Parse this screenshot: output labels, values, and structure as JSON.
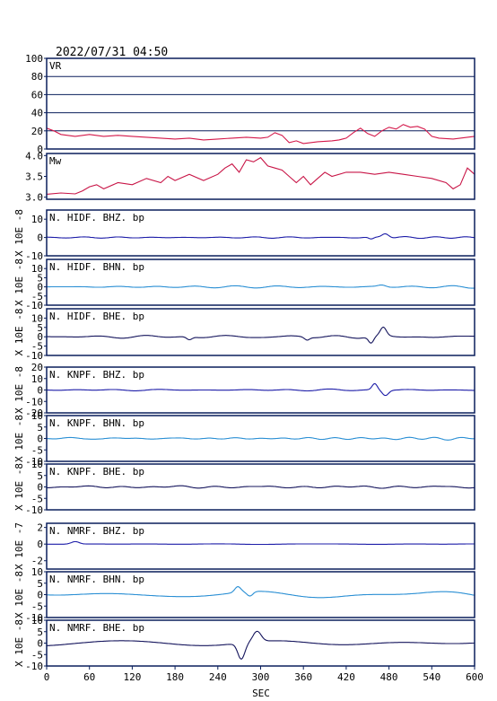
{
  "header": {
    "datetime": "2022/07/31  04:50"
  },
  "x_axis": {
    "label": "SEC",
    "range": [
      0,
      600
    ],
    "ticks": [
      0,
      60,
      120,
      180,
      240,
      300,
      360,
      420,
      480,
      540,
      600
    ]
  },
  "colors": {
    "frame": "#0a1f5c",
    "vr_line": "#d4184a",
    "mw_line": "#c81446",
    "dark_blue": "#1c1ca8",
    "light_blue": "#2a8fd4",
    "navy": "#14145c",
    "grid": "#0a1f5c"
  },
  "chart_data": [
    {
      "type": "line",
      "id": "vr",
      "label": "VR",
      "color_key": "vr_line",
      "ylim": [
        0,
        100
      ],
      "yticks": [
        "0",
        "20",
        "40",
        "60",
        "80",
        "100"
      ],
      "ytick_values": [
        0,
        20,
        40,
        60,
        80,
        100
      ],
      "grid": true,
      "ylabel": "",
      "points": [
        [
          0,
          23
        ],
        [
          10,
          20
        ],
        [
          20,
          16
        ],
        [
          40,
          14
        ],
        [
          60,
          16
        ],
        [
          80,
          14
        ],
        [
          100,
          15
        ],
        [
          120,
          14
        ],
        [
          140,
          13
        ],
        [
          160,
          12
        ],
        [
          180,
          11
        ],
        [
          200,
          12
        ],
        [
          220,
          10
        ],
        [
          240,
          11
        ],
        [
          260,
          12
        ],
        [
          280,
          13
        ],
        [
          300,
          12
        ],
        [
          310,
          13
        ],
        [
          320,
          18
        ],
        [
          330,
          15
        ],
        [
          340,
          7
        ],
        [
          350,
          9
        ],
        [
          360,
          6
        ],
        [
          380,
          8
        ],
        [
          400,
          9
        ],
        [
          410,
          10
        ],
        [
          420,
          12
        ],
        [
          430,
          18
        ],
        [
          440,
          23
        ],
        [
          450,
          17
        ],
        [
          460,
          14
        ],
        [
          470,
          20
        ],
        [
          480,
          24
        ],
        [
          490,
          22
        ],
        [
          500,
          27
        ],
        [
          510,
          24
        ],
        [
          520,
          25
        ],
        [
          530,
          22
        ],
        [
          540,
          14
        ],
        [
          550,
          12
        ],
        [
          570,
          11
        ],
        [
          580,
          12
        ],
        [
          600,
          14
        ]
      ]
    },
    {
      "type": "line",
      "id": "mw",
      "label": "Mw",
      "color_key": "mw_line",
      "ylim": [
        2.95,
        4.05
      ],
      "yticks": [
        "3.0",
        "3.5",
        "4.0"
      ],
      "ytick_values": [
        3.0,
        3.5,
        4.0
      ],
      "grid": false,
      "ylabel": "",
      "points": [
        [
          0,
          3.07
        ],
        [
          20,
          3.1
        ],
        [
          40,
          3.08
        ],
        [
          50,
          3.15
        ],
        [
          60,
          3.25
        ],
        [
          70,
          3.3
        ],
        [
          80,
          3.2
        ],
        [
          100,
          3.35
        ],
        [
          120,
          3.3
        ],
        [
          140,
          3.45
        ],
        [
          160,
          3.35
        ],
        [
          170,
          3.5
        ],
        [
          180,
          3.4
        ],
        [
          200,
          3.55
        ],
        [
          220,
          3.4
        ],
        [
          240,
          3.55
        ],
        [
          250,
          3.7
        ],
        [
          260,
          3.8
        ],
        [
          270,
          3.6
        ],
        [
          280,
          3.9
        ],
        [
          290,
          3.85
        ],
        [
          300,
          3.95
        ],
        [
          310,
          3.75
        ],
        [
          320,
          3.7
        ],
        [
          330,
          3.65
        ],
        [
          340,
          3.5
        ],
        [
          350,
          3.35
        ],
        [
          360,
          3.5
        ],
        [
          370,
          3.3
        ],
        [
          380,
          3.45
        ],
        [
          390,
          3.6
        ],
        [
          400,
          3.5
        ],
        [
          420,
          3.6
        ],
        [
          440,
          3.6
        ],
        [
          460,
          3.55
        ],
        [
          480,
          3.6
        ],
        [
          500,
          3.55
        ],
        [
          520,
          3.5
        ],
        [
          540,
          3.45
        ],
        [
          560,
          3.35
        ],
        [
          570,
          3.2
        ],
        [
          580,
          3.3
        ],
        [
          590,
          3.7
        ],
        [
          600,
          3.55
        ]
      ]
    },
    {
      "type": "line",
      "id": "hidf_bhz",
      "label": "N. HIDF. BHZ. bp",
      "color_key": "dark_blue",
      "ylim": [
        -10,
        15
      ],
      "yticks": [
        "-10",
        "0",
        "10"
      ],
      "ytick_values": [
        -10,
        0,
        10
      ],
      "grid": false,
      "ylabel": "X 10E -8",
      "trace": {
        "amp": 0.4,
        "freq": 0.12,
        "seed": 1,
        "events": [
          {
            "t": 455,
            "a": -1.2,
            "w": 5
          },
          {
            "t": 475,
            "a": 2.4,
            "w": 7
          }
        ]
      }
    },
    {
      "type": "line",
      "id": "hidf_bhn",
      "label": "N. HIDF. BHN. bp",
      "color_key": "light_blue",
      "ylim": [
        -10,
        15
      ],
      "yticks": [
        "-10",
        "-5",
        "0",
        "5",
        "10"
      ],
      "ytick_values": [
        -10,
        -5,
        0,
        5,
        10
      ],
      "grid": false,
      "ylabel": "X 10E -8",
      "trace": {
        "amp": 0.6,
        "freq": 0.1,
        "seed": 2,
        "events": [
          {
            "t": 470,
            "a": 1.0,
            "w": 8
          }
        ]
      }
    },
    {
      "type": "line",
      "id": "hidf_bhe",
      "label": "N. HIDF. BHE. bp",
      "color_key": "navy",
      "ylim": [
        -10,
        15
      ],
      "yticks": [
        "-10",
        "-5",
        "0",
        "5",
        "10"
      ],
      "ytick_values": [
        -10,
        -5,
        0,
        5,
        10
      ],
      "grid": false,
      "ylabel": "X 10E -8",
      "trace": {
        "amp": 0.8,
        "freq": 0.08,
        "seed": 3,
        "events": [
          {
            "t": 455,
            "a": -3.5,
            "w": 5
          },
          {
            "t": 472,
            "a": 4.5,
            "w": 6
          },
          {
            "t": 200,
            "a": -1.5,
            "w": 5
          },
          {
            "t": 365,
            "a": -1.5,
            "w": 5
          }
        ]
      }
    },
    {
      "type": "line",
      "id": "knpf_bhz",
      "label": "N. KNPF. BHZ. bp",
      "color_key": "dark_blue",
      "ylim": [
        -20,
        20
      ],
      "yticks": [
        "-20",
        "-10",
        "0",
        "10",
        "20"
      ],
      "ytick_values": [
        -20,
        -10,
        0,
        10,
        20
      ],
      "grid": false,
      "ylabel": "X 10E -8",
      "trace": {
        "amp": 0.5,
        "freq": 0.1,
        "seed": 4,
        "events": [
          {
            "t": 460,
            "a": 5.5,
            "w": 5
          },
          {
            "t": 475,
            "a": -4.5,
            "w": 6
          }
        ]
      }
    },
    {
      "type": "line",
      "id": "knpf_bhn",
      "label": "N. KNPF. BHN. bp",
      "color_key": "light_blue",
      "ylim": [
        -10,
        10
      ],
      "yticks": [
        "-10",
        "-5",
        "0",
        "5",
        "10"
      ],
      "ytick_values": [
        -10,
        -5,
        0,
        5,
        10
      ],
      "grid": false,
      "ylabel": "X 10E -8",
      "trace": {
        "amp": 0.6,
        "freq": 0.13,
        "seed": 5,
        "events": []
      }
    },
    {
      "type": "line",
      "id": "knpf_bhe",
      "label": "N. KNPF. BHE. bp",
      "color_key": "navy",
      "ylim": [
        -10,
        10
      ],
      "yticks": [
        "-10",
        "-5",
        "0",
        "5",
        "10"
      ],
      "ytick_values": [
        -10,
        -5,
        0,
        5,
        10
      ],
      "grid": false,
      "ylabel": "X 10E -8",
      "trace": {
        "amp": 0.5,
        "freq": 0.1,
        "seed": 6,
        "events": []
      }
    },
    {
      "type": "line",
      "id": "nmrf_bhz",
      "label": "N. NMRF. BHZ. bp",
      "color_key": "dark_blue",
      "ylim": [
        -3,
        2.5
      ],
      "yticks": [
        "-2",
        "0",
        "2"
      ],
      "ytick_values": [
        -2,
        0,
        2
      ],
      "grid": false,
      "ylabel": "X 10E -7",
      "trace": {
        "amp": 0.03,
        "freq": 0.05,
        "seed": 7,
        "events": [
          {
            "t": 40,
            "a": 0.3,
            "w": 8
          }
        ]
      }
    },
    {
      "type": "line",
      "id": "nmrf_bhn",
      "label": "N. NMRF. BHN. bp",
      "color_key": "light_blue",
      "ylim": [
        -10,
        10
      ],
      "yticks": [
        "-10",
        "-5",
        "0",
        "5",
        "10"
      ],
      "ytick_values": [
        -10,
        -5,
        0,
        5,
        10
      ],
      "grid": false,
      "ylabel": "X 10E -8",
      "trace": {
        "amp": 1.8,
        "freq": 0.035,
        "seed": 8,
        "events": [
          {
            "t": 268,
            "a": 2.5,
            "w": 6
          },
          {
            "t": 285,
            "a": -2.0,
            "w": 6
          }
        ]
      }
    },
    {
      "type": "line",
      "id": "nmrf_bhe",
      "label": "N. NMRF. BHE. bp",
      "color_key": "navy",
      "ylim": [
        -10,
        10
      ],
      "yticks": [
        "-10",
        "-5",
        "0",
        "5",
        "10"
      ],
      "ytick_values": [
        -10,
        -5,
        0,
        5,
        10
      ],
      "grid": false,
      "ylabel": "X 10E -8",
      "trace": {
        "amp": 1.2,
        "freq": 0.035,
        "seed": 9,
        "events": [
          {
            "t": 273,
            "a": -7,
            "w": 7
          },
          {
            "t": 295,
            "a": 4.5,
            "w": 8
          }
        ]
      }
    }
  ]
}
